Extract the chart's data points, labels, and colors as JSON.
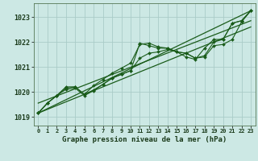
{
  "title": "Graphe pression niveau de la mer (hPa)",
  "background_color": "#cce8e4",
  "grid_color": "#aaccc8",
  "line_color": "#1a5c1a",
  "xlim": [
    -0.5,
    23.5
  ],
  "ylim": [
    1018.65,
    1023.55
  ],
  "xticks": [
    0,
    1,
    2,
    3,
    4,
    5,
    6,
    7,
    8,
    9,
    10,
    11,
    12,
    13,
    14,
    15,
    16,
    17,
    18,
    19,
    20,
    21,
    22,
    23
  ],
  "yticks": [
    1019,
    1020,
    1021,
    1022,
    1023
  ],
  "series_with_markers": [
    [
      1019.15,
      1019.55,
      1019.85,
      1020.15,
      1020.2,
      1019.9,
      1020.08,
      1020.3,
      1020.55,
      1020.7,
      1020.85,
      1021.95,
      1021.85,
      1021.75,
      1021.75,
      1021.6,
      1021.55,
      1021.35,
      1021.45,
      1022.0,
      1022.1,
      1022.75,
      1022.85,
      1023.25
    ],
    [
      1019.15,
      1019.55,
      1019.85,
      1020.2,
      1020.2,
      1019.9,
      1020.25,
      1020.5,
      1020.75,
      1020.95,
      1021.15,
      1021.9,
      1021.95,
      1021.8,
      1021.75,
      1021.6,
      1021.4,
      1021.3,
      1021.75,
      1022.1,
      1022.1,
      1022.75,
      1022.85,
      1023.25
    ],
    [
      1019.15,
      1019.55,
      1019.85,
      1020.1,
      1020.15,
      1019.85,
      1020.05,
      1020.3,
      1020.55,
      1020.7,
      1020.85,
      1021.35,
      1021.55,
      1021.6,
      1021.7,
      1021.6,
      1021.55,
      1021.35,
      1021.4,
      1021.85,
      1021.9,
      1022.1,
      1022.8,
      1023.25
    ]
  ],
  "trend_lines": [
    {
      "x": [
        0,
        23
      ],
      "y": [
        1019.15,
        1023.25
      ]
    },
    {
      "x": [
        0,
        23
      ],
      "y": [
        1019.55,
        1022.85
      ]
    },
    {
      "x": [
        0,
        23
      ],
      "y": [
        1019.15,
        1022.6
      ]
    }
  ]
}
